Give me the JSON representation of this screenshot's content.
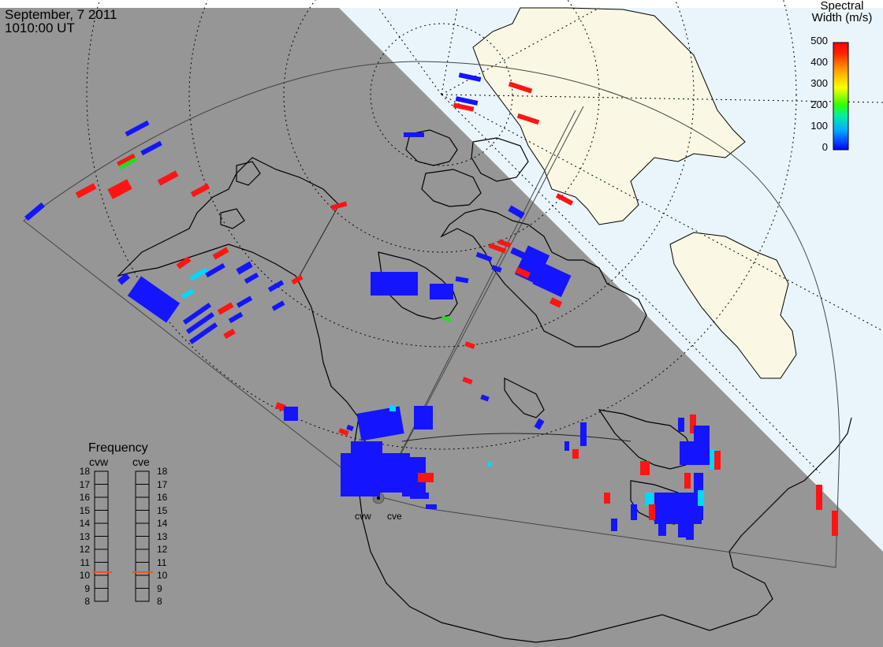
{
  "header": {
    "date": "September, 7 2011",
    "time": "1010:00 UT"
  },
  "colorbar": {
    "title_line1": "Spectral",
    "title_line2": "Width (m/s)",
    "ticks": [
      "500",
      "400",
      "300",
      "200",
      "100",
      "0"
    ]
  },
  "frequency": {
    "title": "Frequency",
    "radars": [
      "cvw",
      "cve"
    ],
    "ticks": [
      "18",
      "17",
      "16",
      "15",
      "14",
      "13",
      "12",
      "11",
      "10",
      "9",
      "8"
    ],
    "selected_mhz": {
      "cvw": 10.6,
      "cve": 10.7
    }
  },
  "radar_sites": [
    "cvw",
    "cve"
  ],
  "colors": {
    "night": "#969696",
    "day_ocean": "#eaf5fb",
    "land_day": "#faf8e4",
    "low_width": "#1414ff",
    "high_width": "#ff1414",
    "mid_width": "#00d8ff",
    "green_width": "#22dd22",
    "freq_marker": "#e8571e"
  }
}
